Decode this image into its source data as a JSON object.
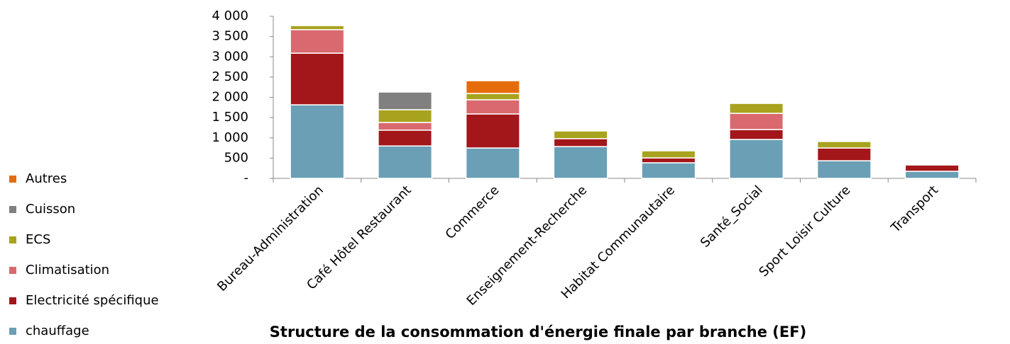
{
  "chart_data": {
    "type": "stacked_bar",
    "title": "Structure de la consommation d'énergie finale par branche (EF)",
    "categories": [
      "Bureau-Administration",
      "Café Hôtel Restaurant",
      "Commerce",
      "Enseignement-Recherche",
      "Habitat Communautaire",
      "Santé_Social",
      "Sport Loisir Culture",
      "Transport"
    ],
    "series": [
      {
        "name": "chauffage",
        "color": "#6a9fb5",
        "values": [
          1815,
          800,
          750,
          785,
          385,
          960,
          435,
          175
        ]
      },
      {
        "name": "Electricité spécifique",
        "color": "#a3161a",
        "values": [
          1275,
          390,
          840,
          195,
          120,
          245,
          315,
          155
        ]
      },
      {
        "name": "Climatisation",
        "color": "#d9696e",
        "values": [
          580,
          190,
          350,
          0,
          0,
          400,
          0,
          0
        ]
      },
      {
        "name": "ECS",
        "color": "#a8a31e",
        "values": [
          100,
          315,
          155,
          190,
          175,
          245,
          160,
          0
        ]
      },
      {
        "name": "Cuisson",
        "color": "#808080",
        "values": [
          0,
          435,
          0,
          0,
          0,
          0,
          0,
          0
        ]
      },
      {
        "name": "Autres",
        "color": "#e46c0a",
        "values": [
          0,
          0,
          315,
          0,
          0,
          0,
          0,
          0
        ]
      }
    ],
    "ylim": [
      0,
      4000
    ],
    "yticks": [
      {
        "value": 0,
        "label": "-"
      },
      500,
      {
        "value": 1000,
        "label": "1 000"
      },
      {
        "value": 1500,
        "label": "1 500"
      },
      {
        "value": 2000,
        "label": "2 000"
      },
      {
        "value": 2500,
        "label": "2 500"
      },
      {
        "value": 3000,
        "label": "3 000"
      },
      {
        "value": 3500,
        "label": "3 500"
      },
      {
        "value": 4000,
        "label": "4 000"
      }
    ],
    "legend": "left"
  }
}
